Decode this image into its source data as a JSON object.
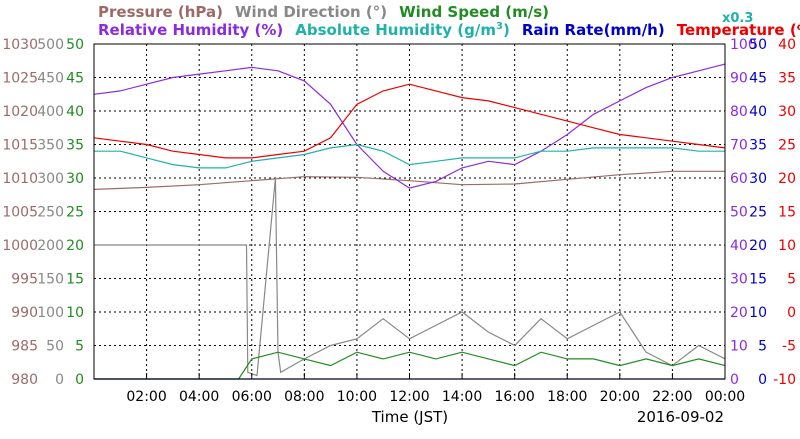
{
  "chart_data": {
    "type": "line",
    "date_label": "2016-09-02",
    "xlabel": "Time (JST)",
    "x_ticks": [
      "02:00",
      "04:00",
      "06:00",
      "08:00",
      "10:00",
      "12:00",
      "14:00",
      "16:00",
      "18:00",
      "20:00",
      "22:00",
      "00:00"
    ],
    "x_range_hours": [
      0,
      24
    ],
    "grid": true,
    "legend_row1": [
      {
        "text": "Pressure (hPa)",
        "color": "#9c6b68"
      },
      {
        "text": "Wind Direction (°)",
        "color": "#888888"
      },
      {
        "text": "Wind Speed (m/s)",
        "color": "#228b22"
      }
    ],
    "legend_row2": [
      {
        "text": "Relative Humidity (%)",
        "color": "#8a2be2"
      },
      {
        "text": "Absolute Humidity (g/m",
        "sup": "3",
        "tail": ")",
        "color": "#20b2aa"
      },
      {
        "text": "Rain Rate(mm/h)",
        "color": "#0000cd"
      },
      {
        "text": "Temperature (",
        "sub": "o",
        "tail": "C)",
        "color": "#ee0000"
      }
    ],
    "abs_humidity_scale_note": {
      "text": "x0.3",
      "color": "#20b2aa"
    },
    "axes": {
      "pressure": {
        "color": "#9c6b68",
        "range": [
          980,
          1030
        ],
        "ticks": [
          "1030",
          "1025",
          "1020",
          "1015",
          "1010",
          "1005",
          "1000",
          "995",
          "990",
          "985",
          "980"
        ]
      },
      "wind_direction": {
        "color": "#888888",
        "range": [
          0,
          500
        ],
        "ticks": [
          "500",
          "450",
          "400",
          "350",
          "300",
          "250",
          "200",
          "150",
          "100",
          "50",
          "0"
        ]
      },
      "wind_speed": {
        "color": "#228b22",
        "range": [
          0,
          50
        ],
        "ticks": [
          "50",
          "45",
          "40",
          "35",
          "30",
          "25",
          "20",
          "15",
          "10",
          "5",
          "0"
        ]
      },
      "humidity": {
        "color": "#8a2be2",
        "range": [
          0,
          100
        ],
        "ticks": [
          "100",
          "90",
          "80",
          "70",
          "60",
          "50",
          "40",
          "30",
          "20",
          "10",
          "0"
        ]
      },
      "rain_rate": {
        "color": "#0000cd",
        "range": [
          0,
          50
        ],
        "ticks": [
          "50",
          "45",
          "40",
          "35",
          "30",
          "25",
          "20",
          "15",
          "10",
          "5",
          "0"
        ]
      },
      "temperature": {
        "color": "#ee0000",
        "range": [
          -10,
          40
        ],
        "ticks": [
          "40",
          "35",
          "30",
          "25",
          "20",
          "15",
          "10",
          "5",
          "0",
          "-5",
          "-10"
        ]
      }
    },
    "series": [
      {
        "name": "Pressure (hPa)",
        "axis": "pressure",
        "color": "#9c6b68",
        "x": [
          0,
          2,
          4,
          6,
          8,
          10,
          12,
          14,
          16,
          18,
          20,
          22,
          24
        ],
        "values": [
          1008.3,
          1008.6,
          1009.0,
          1009.6,
          1010.2,
          1010.1,
          1009.6,
          1009.0,
          1009.1,
          1009.8,
          1010.5,
          1011.0,
          1011.0
        ]
      },
      {
        "name": "Wind Direction (°)",
        "axis": "wind_direction",
        "color": "#888888",
        "x": [
          0,
          5.8,
          5.85,
          6.2,
          6.9,
          7.0,
          7.1,
          8,
          9,
          10,
          11,
          12,
          13,
          14,
          15,
          16,
          17,
          18,
          19,
          20,
          21,
          22,
          23,
          24
        ],
        "values": [
          200,
          200,
          10,
          5,
          300,
          40,
          10,
          30,
          50,
          60,
          90,
          60,
          80,
          100,
          70,
          50,
          90,
          60,
          80,
          100,
          40,
          20,
          50,
          30
        ]
      },
      {
        "name": "Wind Speed (m/s)",
        "axis": "wind_speed",
        "color": "#228b22",
        "x": [
          0,
          5.5,
          6,
          7,
          8,
          9,
          10,
          11,
          12,
          13,
          14,
          15,
          16,
          17,
          18,
          19,
          20,
          21,
          22,
          23,
          24
        ],
        "values": [
          0,
          0,
          3,
          4,
          3,
          2,
          4,
          3,
          4,
          3,
          4,
          3,
          2,
          4,
          3,
          3,
          2,
          3,
          2,
          3,
          2
        ]
      },
      {
        "name": "Relative Humidity (%)",
        "axis": "humidity",
        "color": "#8a2be2",
        "x": [
          0,
          1,
          2,
          3,
          4,
          5,
          6,
          7,
          8,
          9,
          10,
          11,
          12,
          13,
          14,
          15,
          16,
          17,
          18,
          19,
          20,
          21,
          22,
          23,
          24
        ],
        "values": [
          85,
          86,
          88,
          90,
          91,
          92,
          93,
          92,
          89,
          82,
          70,
          62,
          57,
          59,
          63,
          65,
          64,
          68,
          73,
          79,
          83,
          87,
          90,
          92,
          94
        ]
      },
      {
        "name": "Absolute Humidity (g/m3)",
        "axis": "humidity",
        "color": "#20b2aa",
        "x": [
          0,
          1,
          2,
          3,
          4,
          5,
          6,
          7,
          8,
          9,
          10,
          11,
          12,
          13,
          14,
          15,
          16,
          17,
          18,
          19,
          20,
          21,
          22,
          23,
          24
        ],
        "values": [
          68,
          68,
          66,
          64,
          63,
          63,
          65,
          66,
          67,
          69,
          70,
          68,
          64,
          65,
          66,
          66,
          66,
          68,
          68,
          69,
          69,
          69,
          69,
          68,
          68
        ]
      },
      {
        "name": "Rain Rate(mm/h)",
        "axis": "rain_rate",
        "color": "#0000cd",
        "x": [
          0,
          24
        ],
        "values": [
          0,
          0
        ]
      },
      {
        "name": "Temperature (oC)",
        "axis": "temperature",
        "color": "#ee0000",
        "x": [
          0,
          1,
          2,
          3,
          4,
          5,
          6,
          7,
          8,
          9,
          10,
          11,
          12,
          13,
          14,
          15,
          16,
          17,
          18,
          19,
          20,
          21,
          22,
          23,
          24
        ],
        "values": [
          26,
          25.5,
          25,
          24,
          23.5,
          23,
          23,
          23.5,
          24,
          26,
          31,
          33,
          34,
          33,
          32,
          31.5,
          30.5,
          29.5,
          28.5,
          27.5,
          26.5,
          26,
          25.5,
          25,
          24.5
        ]
      }
    ]
  }
}
